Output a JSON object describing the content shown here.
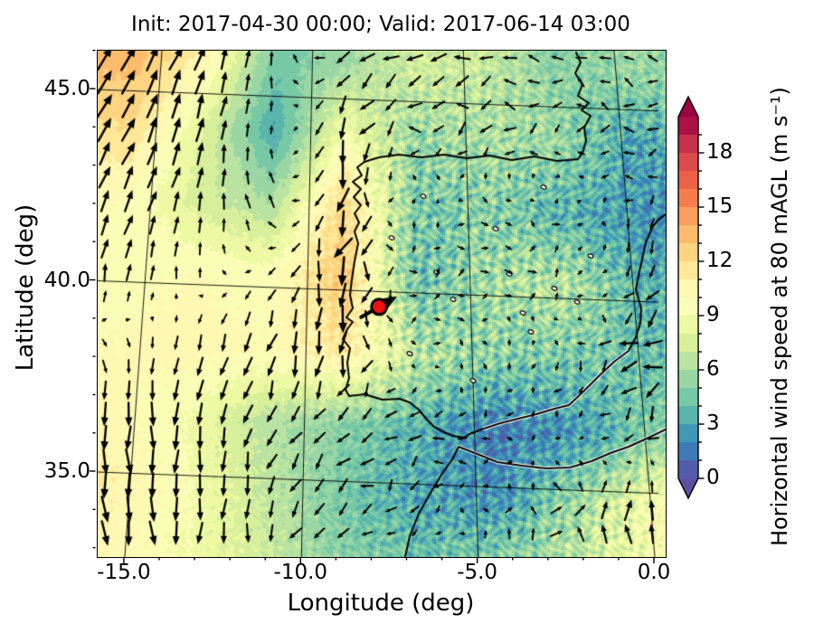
{
  "title": "Init: 2017-04-30 00:00; Valid: 2017-06-14 03:00",
  "axes": {
    "xlabel": "Longitude (deg)",
    "ylabel": "Latitude (deg)",
    "xticks": [
      {
        "label": "-15.0",
        "value": -15
      },
      {
        "label": "-10.0",
        "value": -10
      },
      {
        "label": "-5.0",
        "value": -5
      },
      {
        "label": "0.0",
        "value": 0
      }
    ],
    "yticks": [
      {
        "label": "45.0",
        "value": 45
      },
      {
        "label": "40.0",
        "value": 40
      },
      {
        "label": "35.0",
        "value": 35
      }
    ]
  },
  "colorbar": {
    "label": "Horizontal wind speed at 80 mAGL (m s⁻¹)",
    "units": "m s⁻¹",
    "vmin": 0,
    "vmax": 20,
    "ticks": [
      {
        "label": "18",
        "value": 18
      },
      {
        "label": "15",
        "value": 15
      },
      {
        "label": "12",
        "value": 12
      },
      {
        "label": "9",
        "value": 9
      },
      {
        "label": "6",
        "value": 6
      },
      {
        "label": "3",
        "value": 3
      },
      {
        "label": "0",
        "value": 0
      }
    ],
    "colormap": "Spectral_r",
    "colormap_stops": [
      "#5e4fa2",
      "#3288bd",
      "#66c2a5",
      "#abdda4",
      "#e6f598",
      "#ffffbf",
      "#fee08b",
      "#fdae61",
      "#f46d43",
      "#d53e4f",
      "#9e0142"
    ],
    "extend_over_color": "#9e0142",
    "extend_under_color": "#5e4fa2"
  },
  "chart_data": {
    "type": "heatmap",
    "overlay": "quiver",
    "quantity": "horizontal wind speed at 80 m AGL",
    "units": "m s-1",
    "lon_range": [
      -15.8,
      0.3
    ],
    "lat_range": [
      32.6,
      46.0
    ],
    "graticule": {
      "lons": [
        -15,
        -10,
        -5,
        0
      ],
      "lats": [
        35,
        40,
        45
      ]
    },
    "grid_lons": [
      -15.8,
      -13.5,
      -11.2,
      -8.9,
      -6.6,
      -4.3,
      -2.0,
      0.3
    ],
    "grid_lats": [
      46.0,
      44.1,
      42.2,
      40.3,
      38.4,
      36.5,
      34.6,
      32.7
    ],
    "speed": [
      [
        13.5,
        10.5,
        4.5,
        5.5,
        7.5,
        7.0,
        5.0,
        5.5
      ],
      [
        12.0,
        8.0,
        3.0,
        9.0,
        5.5,
        6.0,
        5.5,
        3.0
      ],
      [
        10.0,
        7.5,
        6.0,
        12.5,
        4.5,
        5.0,
        3.5,
        2.5
      ],
      [
        9.5,
        10.0,
        9.5,
        13.0,
        4.0,
        6.0,
        6.5,
        3.5
      ],
      [
        10.0,
        10.5,
        10.0,
        11.5,
        6.5,
        5.0,
        4.5,
        4.0
      ],
      [
        10.5,
        9.0,
        6.5,
        5.0,
        3.5,
        1.5,
        2.5,
        5.0
      ],
      [
        11.0,
        9.5,
        7.0,
        4.5,
        3.0,
        2.5,
        6.0,
        10.0
      ],
      [
        10.5,
        9.0,
        7.5,
        5.0,
        4.5,
        5.5,
        7.5,
        9.0
      ]
    ],
    "u": [
      [
        5,
        3,
        0,
        -5,
        -6,
        -5,
        -4,
        -3
      ],
      [
        4,
        2,
        0,
        -2,
        -4,
        -5,
        -3,
        -4
      ],
      [
        3,
        1,
        -2,
        -2,
        1,
        2,
        2,
        -2
      ],
      [
        1,
        0,
        -2,
        -2,
        3,
        2,
        3,
        -4
      ],
      [
        1,
        -1,
        -2,
        -3,
        2,
        1,
        -2,
        -6
      ],
      [
        0,
        -1,
        -2,
        -4,
        -4,
        -2,
        -1,
        -4
      ],
      [
        1,
        0,
        -2,
        -4,
        -3,
        0,
        2,
        3
      ],
      [
        1,
        0,
        -1,
        -3,
        -1,
        1,
        2,
        3
      ]
    ],
    "v": [
      [
        8,
        8,
        4,
        -3,
        -2,
        0,
        1,
        2
      ],
      [
        8,
        8,
        2,
        -8,
        -1,
        -1,
        -1,
        1
      ],
      [
        7,
        6,
        4,
        -9,
        2,
        -2,
        1,
        -3
      ],
      [
        6,
        3,
        -2,
        -10,
        1,
        2,
        1,
        -4
      ],
      [
        -2,
        -5,
        -7,
        -8,
        0,
        -2,
        -2,
        -6
      ],
      [
        -8,
        -8,
        -6,
        -3,
        -2,
        -1,
        -1,
        -3
      ],
      [
        -9,
        -8,
        -6,
        -3,
        -2,
        2,
        6,
        7
      ],
      [
        -9,
        -8,
        -6,
        -4,
        1,
        4,
        7,
        8
      ]
    ],
    "turbulence": [
      [
        0.1,
        0.1,
        0.1,
        0.2,
        0.5,
        0.6,
        0.5,
        0.6
      ],
      [
        0.1,
        0.1,
        0.1,
        0.3,
        0.9,
        0.9,
        0.8,
        0.9
      ],
      [
        0.1,
        0.1,
        0.15,
        0.4,
        1.0,
        1.0,
        0.9,
        0.7
      ],
      [
        0.1,
        0.1,
        0.15,
        0.5,
        1.0,
        1.0,
        1.0,
        0.8
      ],
      [
        0.1,
        0.1,
        0.2,
        0.5,
        1.0,
        1.0,
        0.9,
        0.8
      ],
      [
        0.15,
        0.15,
        0.2,
        0.4,
        0.7,
        0.8,
        0.7,
        0.6
      ],
      [
        0.2,
        0.2,
        0.25,
        0.4,
        0.8,
        0.8,
        0.9,
        0.8
      ],
      [
        0.2,
        0.2,
        0.3,
        0.5,
        0.8,
        0.9,
        0.9,
        0.8
      ]
    ],
    "marker": {
      "lon": -7.8,
      "lat": 39.6,
      "color": "#ee1111",
      "edge_color": "#000000",
      "arrow_dir_deg": 30
    }
  }
}
